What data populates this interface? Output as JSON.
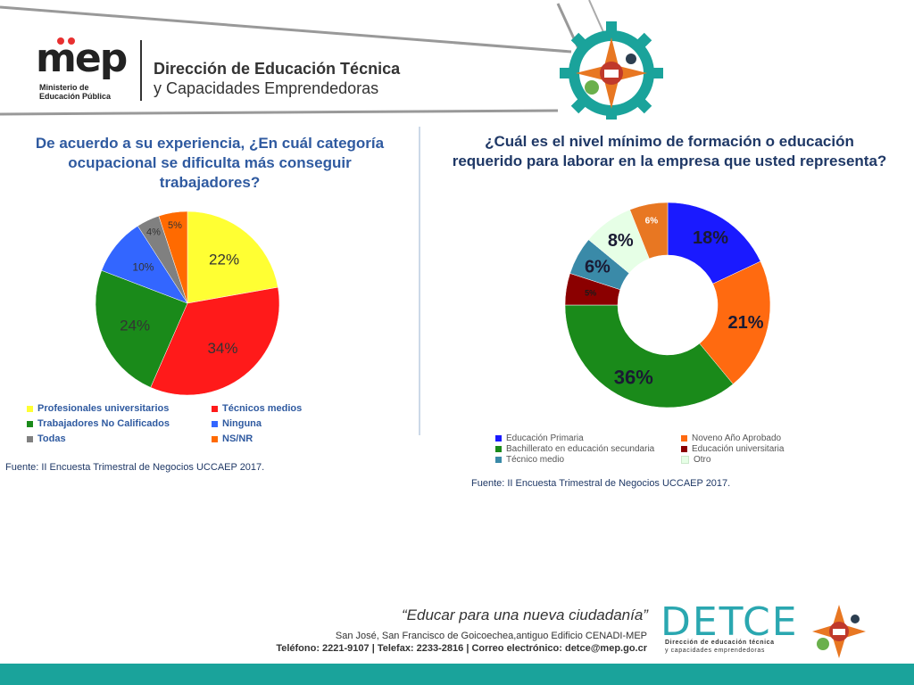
{
  "header": {
    "logo_text": "mep",
    "logo_sub_1": "Ministerio de",
    "logo_sub_2": "Educación Pública",
    "title_line1": "Dirección de Educación Técnica",
    "title_line2": "y Capacidades Emprendedoras"
  },
  "left": {
    "question": "De acuerdo a su experiencia, ¿En cuál categoría ocupacional se dificulta más conseguir trabajadores?",
    "source": "Fuente: II Encuesta Trimestral de Negocios UCCAEP 2017."
  },
  "right": {
    "question": "¿Cuál es el nivel mínimo de formación o educación requerido para laborar en la empresa que usted representa?",
    "source": "Fuente: II Encuesta Trimestral de Negocios UCCAEP 2017."
  },
  "chart_data": [
    {
      "type": "pie",
      "title": "De acuerdo a su experiencia, ¿En cuál categoría ocupacional se dificulta más conseguir trabajadores?",
      "categories": [
        "Profesionales universitarios",
        "Técnicos medios",
        "Trabajadores No Calificados",
        "Ninguna",
        "Todas",
        "NS/NR"
      ],
      "values": [
        22,
        34,
        24,
        10,
        4,
        5
      ],
      "labels": [
        "22%",
        "34%",
        "24%",
        "10%",
        "4%",
        "5%"
      ],
      "colors": [
        "#ffff33",
        "#ff1a1a",
        "#1a8a1a",
        "#3366ff",
        "#808080",
        "#ff6a00"
      ],
      "legend_placement": "bottom"
    },
    {
      "type": "pie",
      "style": "donut",
      "title": "¿Cuál es el nivel mínimo de formación o educación requerido para laborar en la empresa que usted representa?",
      "categories": [
        "Educación Primaria",
        "Noveno Año Aprobado",
        "Bachillerato en educación secundaria",
        "Educación universitaria",
        "Técnico medio",
        "Otro"
      ],
      "values": [
        18,
        21,
        36,
        5,
        6,
        8
      ],
      "labels": [
        "18%",
        "21%",
        "36%",
        "5%",
        "6%",
        "8%"
      ],
      "extra_slice": {
        "value": 6,
        "label": "6%",
        "color": "#e87722"
      },
      "colors": [
        "#1a1aff",
        "#ff6a10",
        "#1a8a1a",
        "#8b0000",
        "#3a8aa8",
        "#e6ffe6"
      ],
      "legend_placement": "bottom"
    }
  ],
  "footer": {
    "slogan": "“Educar para una nueva ciudadanía”",
    "address": "San José, San Francisco de Goicoechea,antiguo Edificio CENADI-MEP",
    "contact": "Teléfono: 2221-9107 | Telefax: 2233-2816 | Correo electrónico: detce@mep.go.cr",
    "detce": "DETCE",
    "detce_sub_1": "Dirección de educación técnica",
    "detce_sub_2": "y capacidades emprendedoras"
  }
}
